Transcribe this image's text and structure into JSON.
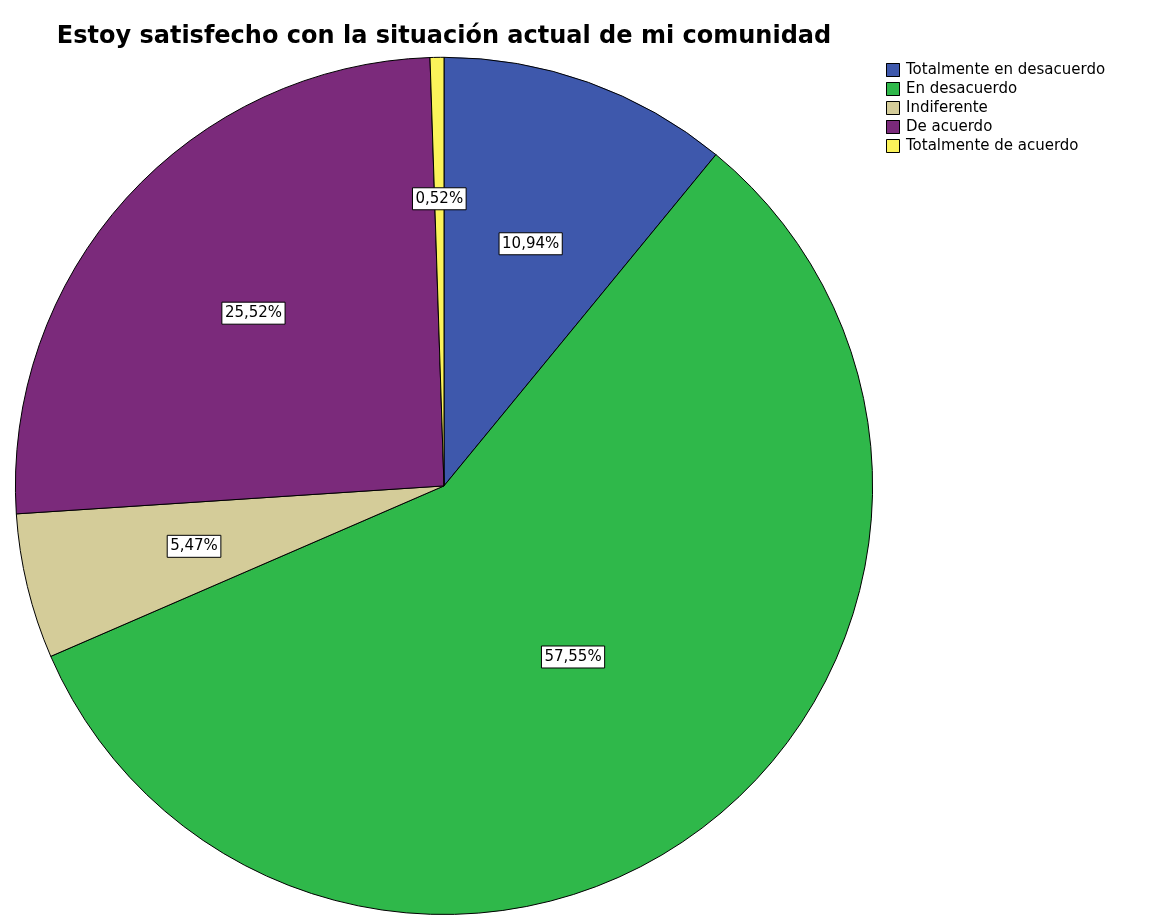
{
  "chart_data": {
    "type": "pie",
    "title": "Estoy satisfecho con la situación actual de mi comunidad",
    "categories": [
      "Totalmente en desacuerdo",
      "En desacuerdo",
      "Indiferente",
      "De acuerdo",
      "Totalmente de acuerdo"
    ],
    "values": [
      10.94,
      57.55,
      5.47,
      25.52,
      0.52
    ],
    "colors": [
      "#3e58ac",
      "#2fb84a",
      "#d4cc99",
      "#7b2a7b",
      "#fbf35a"
    ],
    "value_labels": [
      "10,94%",
      "57,55%",
      "5,47%",
      "25,52%",
      "0,52%"
    ],
    "legend": "top right"
  }
}
